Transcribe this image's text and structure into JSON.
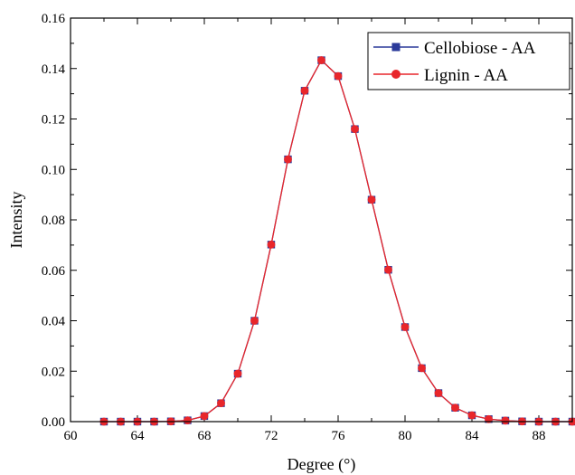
{
  "chart_data": {
    "type": "line",
    "xlabel": "Degree (°)",
    "ylabel": "Intensity",
    "xlim": [
      60,
      90
    ],
    "ylim": [
      0,
      0.16
    ],
    "xticks": [
      "60",
      "64",
      "68",
      "72",
      "76",
      "80",
      "84",
      "88"
    ],
    "xtick_values": [
      60,
      64,
      68,
      72,
      76,
      80,
      84,
      88
    ],
    "yticks": [
      "0.00",
      "0.02",
      "0.04",
      "0.06",
      "0.08",
      "0.10",
      "0.12",
      "0.14",
      "0.16"
    ],
    "ytick_values": [
      0,
      0.02,
      0.04,
      0.06,
      0.08,
      0.1,
      0.12,
      0.14,
      0.16
    ],
    "legend_position": "top-right",
    "x": [
      62,
      63,
      64,
      65,
      66,
      67,
      68,
      69,
      70,
      71,
      72,
      73,
      74,
      75,
      76,
      77,
      78,
      79,
      80,
      81,
      82,
      83,
      84,
      85,
      86,
      87,
      88,
      89,
      90
    ],
    "series": [
      {
        "name": "Cellobiose - AA",
        "color": "#2b3a9a",
        "marker": "square",
        "values": [
          0.0,
          0.0,
          0.0,
          0.0,
          0.0001,
          0.0005,
          0.0022,
          0.0073,
          0.019,
          0.04,
          0.0702,
          0.104,
          0.1312,
          0.1433,
          0.137,
          0.116,
          0.088,
          0.0602,
          0.0375,
          0.0212,
          0.0113,
          0.0055,
          0.0025,
          0.001,
          0.0004,
          0.0001,
          0.0,
          0.0,
          0.0
        ]
      },
      {
        "name": "Lignin - AA",
        "color": "#e8262b",
        "marker": "circle",
        "values": [
          0.0,
          0.0,
          0.0,
          0.0,
          0.0001,
          0.0005,
          0.0022,
          0.0073,
          0.019,
          0.04,
          0.0702,
          0.104,
          0.1312,
          0.1433,
          0.137,
          0.116,
          0.088,
          0.0602,
          0.0375,
          0.0212,
          0.0113,
          0.0055,
          0.0025,
          0.001,
          0.0004,
          0.0001,
          0.0,
          0.0,
          0.0
        ]
      }
    ]
  }
}
